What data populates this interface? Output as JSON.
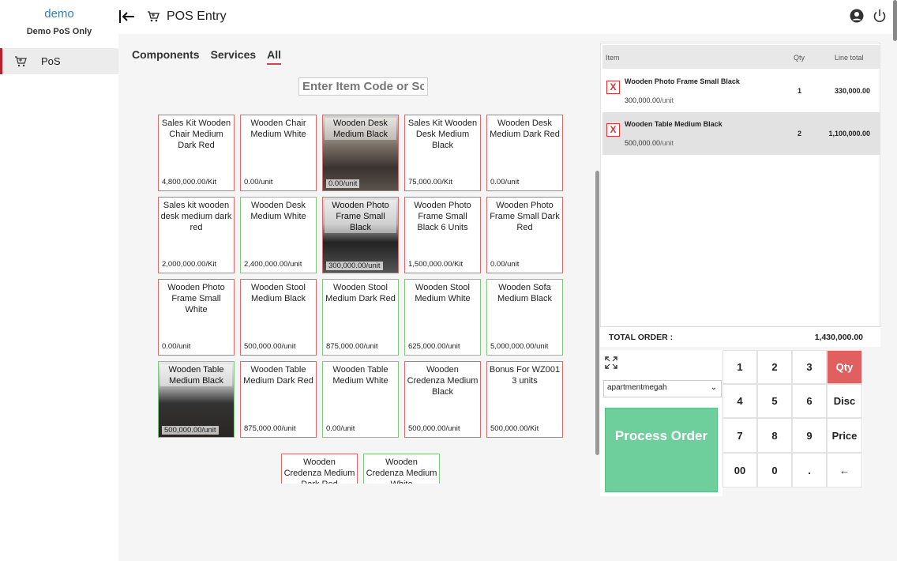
{
  "sidebar": {
    "brand": "demo",
    "subtitle": "Demo PoS Only",
    "items": [
      {
        "label": "PoS",
        "icon": "cart-icon"
      }
    ]
  },
  "topbar": {
    "title": "POS Entry"
  },
  "tabs": [
    {
      "label": "Components",
      "active": false
    },
    {
      "label": "Services",
      "active": false
    },
    {
      "label": "All",
      "active": true
    }
  ],
  "search": {
    "placeholder": "Enter Item Code or Sc"
  },
  "products": [
    {
      "name": "Sales Kit Wooden Chair Medium Dark Red",
      "price": "4,800,000.00/Kit",
      "style": "red"
    },
    {
      "name": "Wooden Chair Medium White",
      "price": "0.00/unit",
      "style": "red"
    },
    {
      "name": "Wooden Desk Medium Black",
      "price": "0.00/unit",
      "style": "img"
    },
    {
      "name": "Sales Kit Wooden Desk Medium Black",
      "price": "75,000.00/Kit",
      "style": "red"
    },
    {
      "name": "Wooden Desk Medium Dark Red",
      "price": "0.00/unit",
      "style": "red"
    },
    {
      "name": "Sales kit wooden desk medium dark red",
      "price": "2,000,000.00/Kit",
      "style": "red"
    },
    {
      "name": "Wooden Desk Medium White",
      "price": "2,400,000.00/unit",
      "style": "green"
    },
    {
      "name": "Wooden Photo Frame Small Black",
      "price": "300,000.00/unit",
      "style": "img2"
    },
    {
      "name": "Wooden Photo Frame Small Black 6 Units",
      "price": "1,500,000.00/Kit",
      "style": "red"
    },
    {
      "name": "Wooden Photo Frame Small Dark Red",
      "price": "0.00/unit",
      "style": "red"
    },
    {
      "name": "Wooden Photo Frame Small White",
      "price": "0.00/unit",
      "style": "red"
    },
    {
      "name": "Wooden Stool Medium Black",
      "price": "500,000.00/unit",
      "style": "red"
    },
    {
      "name": "Wooden Stool Medium Dark Red",
      "price": "875,000.00/unit",
      "style": "green"
    },
    {
      "name": "Wooden Stool Medium White",
      "price": "625,000.00/unit",
      "style": "green"
    },
    {
      "name": "Wooden Sofa Medium Black",
      "price": "5,000,000.00/unit",
      "style": "green"
    },
    {
      "name": "Wooden Table Medium Black",
      "price": "500,000.00/unit",
      "style": "img3"
    },
    {
      "name": "Wooden Table Medium Dark Red",
      "price": "875,000.00/unit",
      "style": "red"
    },
    {
      "name": "Wooden Table Medium White",
      "price": "0.00/unit",
      "style": "green"
    },
    {
      "name": "Wooden Credenza Medium Black",
      "price": "500,000.00/unit",
      "style": "red"
    },
    {
      "name": "Bonus For WZ001 3 units",
      "price": "500,000.00/Kit",
      "style": "red"
    },
    {
      "name": "Wooden Credenza Medium Dark Red",
      "price": "",
      "style": "red"
    },
    {
      "name": "Wooden Credenza Medium White",
      "price": "",
      "style": "green"
    }
  ],
  "order": {
    "headers": {
      "item": "Item",
      "qty": "Qty",
      "total": "Line total"
    },
    "rows": [
      {
        "name": "Wooden Photo Frame Small Black",
        "unit_price": "300,000.00",
        "unit": "/unit",
        "qty": "1",
        "total": "330,000.00",
        "selected": false
      },
      {
        "name": "Wooden Table Medium Black",
        "unit_price": "500,000.00",
        "unit": "/unit",
        "qty": "2",
        "total": "1,100,000.00",
        "selected": true
      }
    ],
    "remove_label": "X",
    "total_label": "TOTAL ORDER :",
    "total_value": "1,430,000.00"
  },
  "controls": {
    "location": "apartmentmegah",
    "process_label": "Process Order"
  },
  "keypad": [
    "1",
    "2",
    "3",
    "Qty",
    "4",
    "5",
    "6",
    "Disc",
    "7",
    "8",
    "9",
    "Price",
    "00",
    "0",
    ".",
    "←"
  ],
  "colors": {
    "accent_red": "#e06060",
    "process_green": "#6ecf9c",
    "brand_blue": "#2f7fc1"
  }
}
